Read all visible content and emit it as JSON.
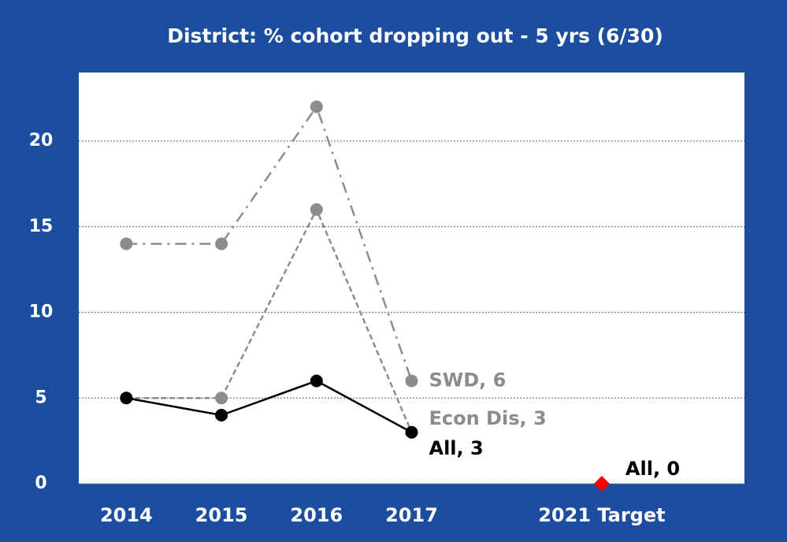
{
  "chart_data": {
    "type": "line",
    "title": "District:  % cohort dropping out - 5 yrs (6/30)",
    "categories": [
      "2014",
      "2015",
      "2016",
      "2017",
      null,
      "2021 Target",
      null
    ],
    "series": [
      {
        "name": "SWD",
        "color": "#8c8c8c",
        "style": "dash-dot",
        "marker": "circle",
        "values": [
          14,
          14,
          22,
          6,
          null,
          null,
          null
        ],
        "value_labels": [
          null,
          null,
          null,
          "SWD, 6",
          null,
          null,
          null
        ]
      },
      {
        "name": "Econ Dis",
        "color": "#8c8c8c",
        "style": "dashed",
        "marker": "circle",
        "values": [
          5,
          5,
          16,
          3,
          null,
          null,
          null
        ],
        "value_labels": [
          null,
          null,
          null,
          "Econ Dis, 3",
          null,
          null,
          null
        ]
      },
      {
        "name": "All",
        "color": "#000000",
        "style": "solid",
        "marker": "circle",
        "values": [
          5,
          4,
          6,
          3,
          null,
          null,
          null
        ],
        "value_labels": [
          null,
          null,
          null,
          "All, 3",
          null,
          null,
          null
        ]
      },
      {
        "name": "All",
        "color": "#ff0000",
        "style": "none",
        "marker": "diamond",
        "values": [
          null,
          null,
          null,
          null,
          null,
          0,
          null
        ],
        "value_labels": [
          null,
          null,
          null,
          null,
          null,
          "All, 0",
          null
        ]
      }
    ],
    "ylim": [
      0,
      24
    ],
    "yticks": [
      0,
      5,
      10,
      15,
      20
    ],
    "grid": true
  }
}
